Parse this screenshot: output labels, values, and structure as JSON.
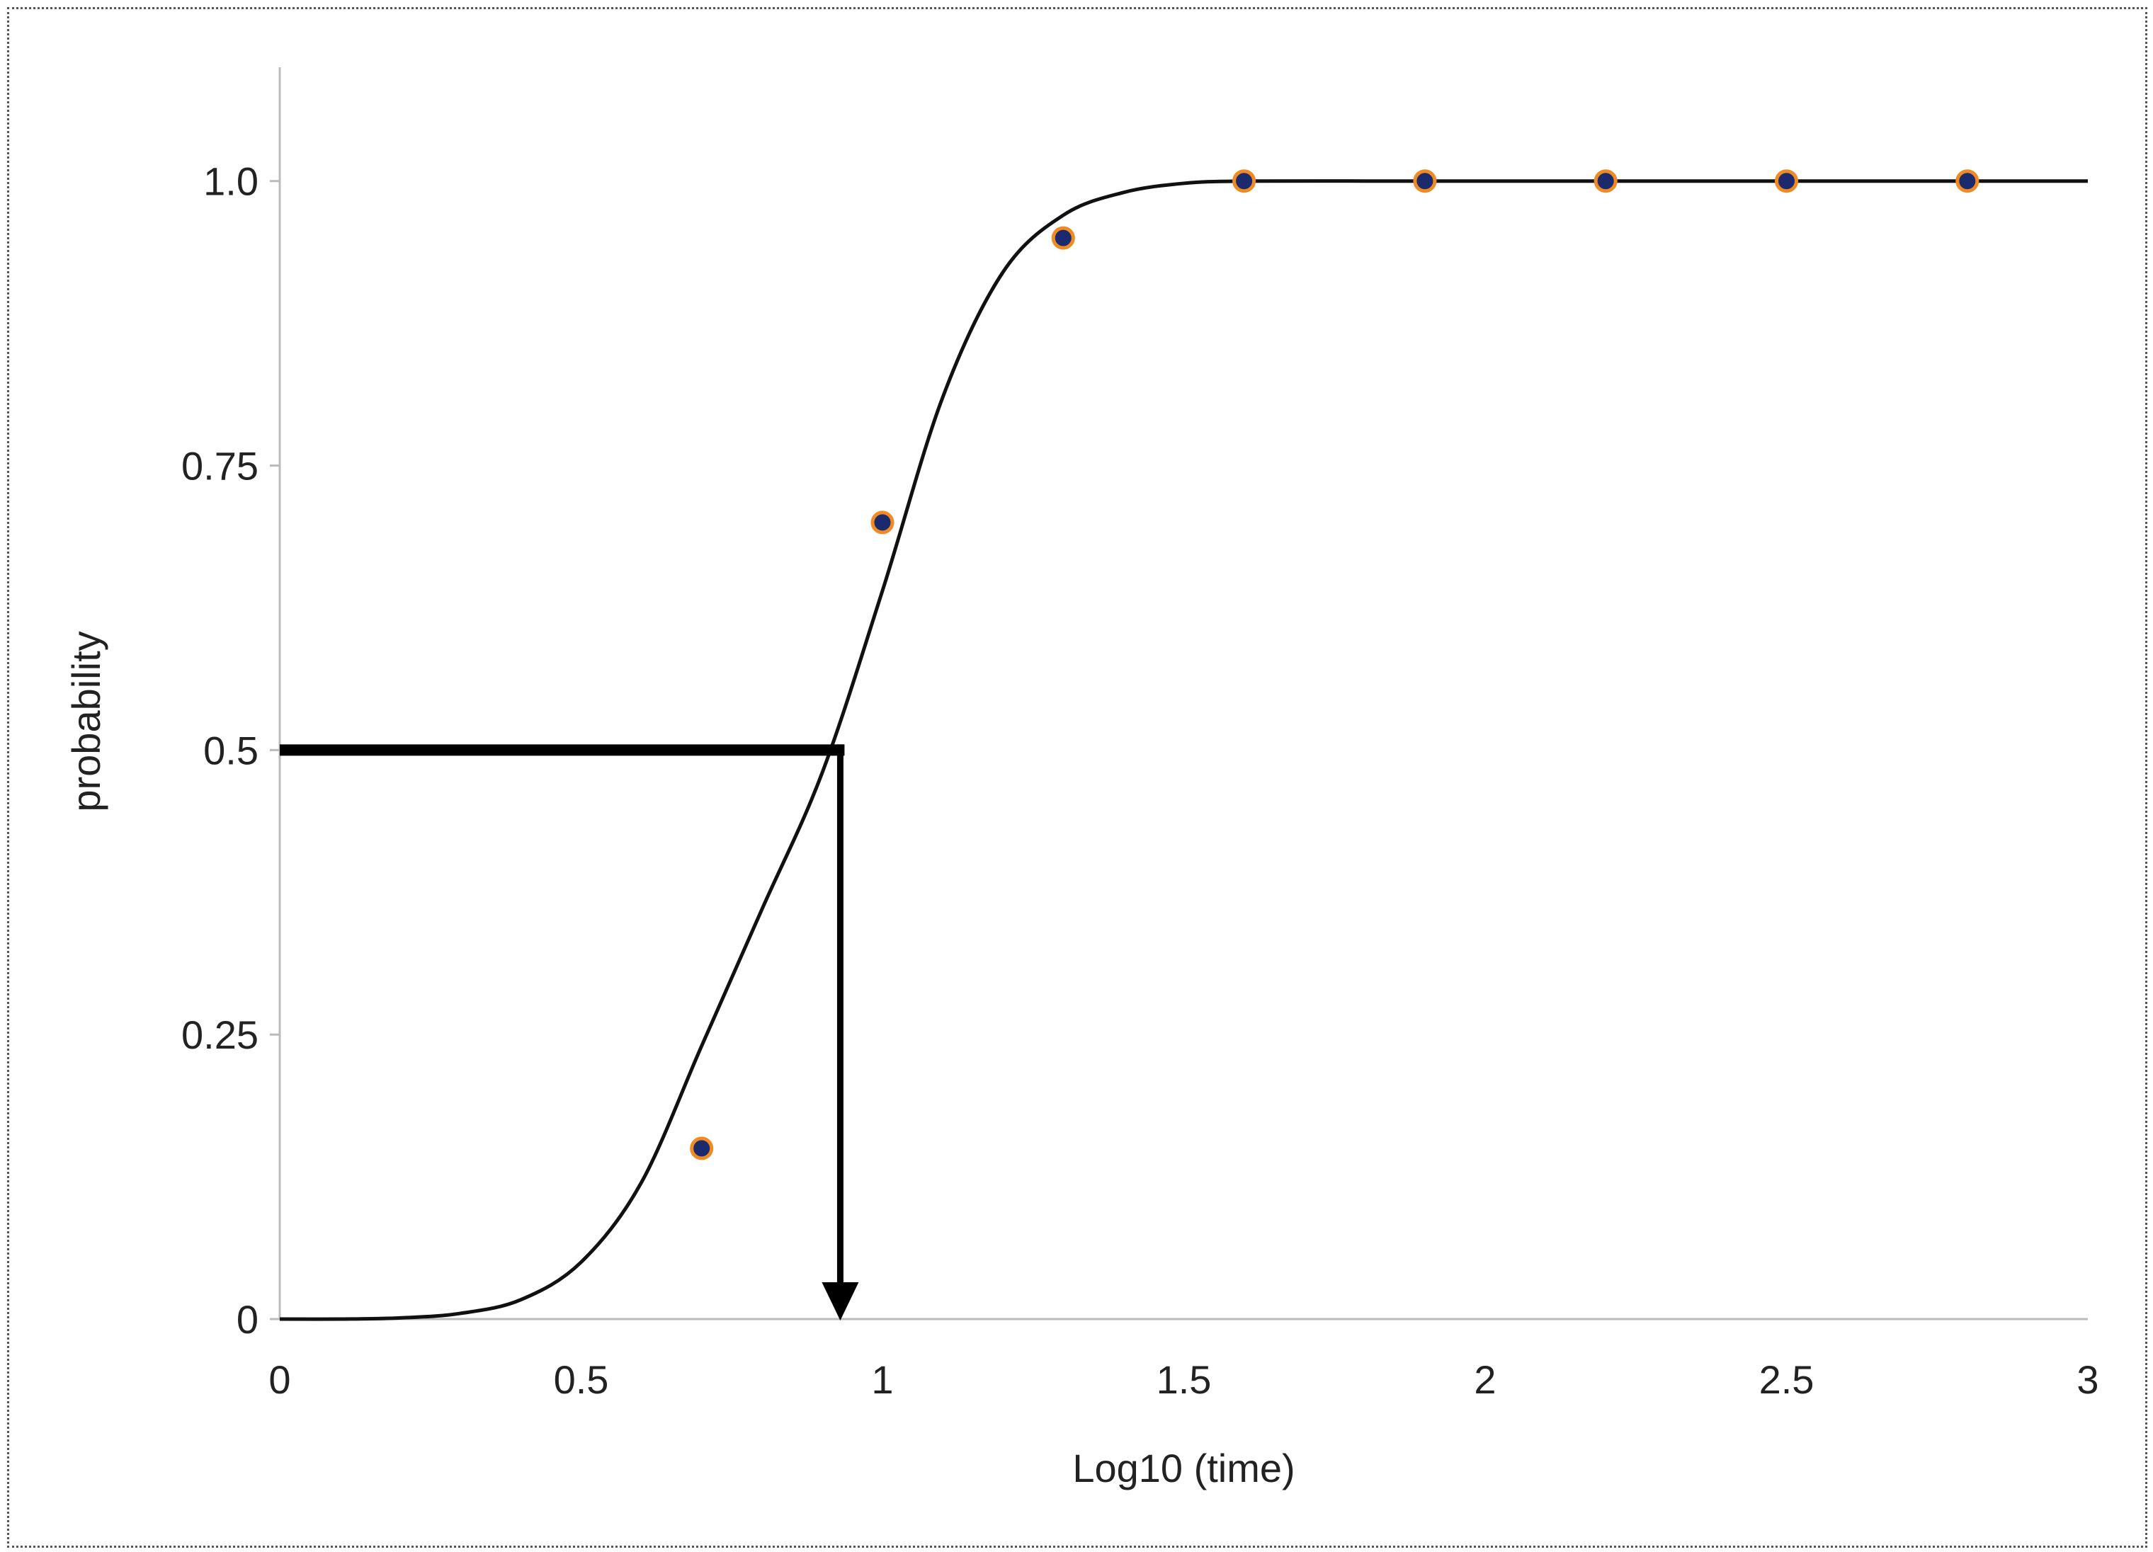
{
  "chart_data": {
    "type": "scatter",
    "title": "",
    "xlabel": "Log10 (time)",
    "ylabel": "probability",
    "xlim": [
      0,
      3
    ],
    "ylim": [
      0,
      1.1
    ],
    "x_ticks": [
      "0",
      "0.5",
      "1",
      "1.5",
      "2",
      "2.5",
      "3"
    ],
    "y_ticks": [
      "0",
      "0.25",
      "0.5",
      "0.75",
      "1.0"
    ],
    "grid": false,
    "series": [
      {
        "type": "scatter",
        "x": [
          0.7,
          1.0,
          1.3,
          1.6,
          1.9,
          2.2,
          2.5,
          2.8
        ],
        "y": [
          0.15,
          0.7,
          0.95,
          1.0,
          1.0,
          1.0,
          1.0,
          1.0
        ]
      },
      {
        "type": "line",
        "x": [
          0,
          0.1,
          0.2,
          0.3,
          0.4,
          0.5,
          0.6,
          0.7,
          0.8,
          0.9,
          1.0,
          1.1,
          1.2,
          1.3,
          1.4,
          1.5,
          1.6,
          1.8,
          2.0,
          2.2,
          2.4,
          2.6,
          2.8,
          3.0
        ],
        "y": [
          0,
          0,
          0.001,
          0.005,
          0.017,
          0.05,
          0.12,
          0.24,
          0.36,
          0.48,
          0.64,
          0.81,
          0.92,
          0.97,
          0.99,
          0.998,
          1.0,
          1.0,
          1.0,
          1.0,
          1.0,
          1.0,
          1.0,
          1.0
        ]
      }
    ],
    "annotation": {
      "type": "median-arrow",
      "x": 0.93,
      "y": 0.5
    },
    "colors": {
      "marker_fill": "#1a2a6c",
      "marker_edge": "#f08a24",
      "line": "#111111",
      "axis": "#bbbbbb"
    }
  }
}
